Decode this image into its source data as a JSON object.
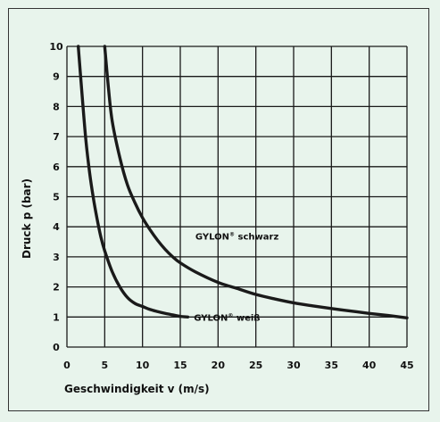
{
  "chart_data": {
    "type": "line",
    "title": "",
    "xlabel": "Geschwindigkeit v (m/s)",
    "ylabel": "Druck p (bar)",
    "xlim": [
      0,
      45
    ],
    "ylim": [
      0,
      10
    ],
    "x_ticks": [
      "0",
      "5",
      "10",
      "15",
      "20",
      "25",
      "30",
      "35",
      "40",
      "45"
    ],
    "y_ticks": [
      "0",
      "1",
      "2",
      "3",
      "4",
      "5",
      "6",
      "7",
      "8",
      "9",
      "10"
    ],
    "grid": true,
    "colors": {
      "background": "#e8f4ec",
      "grid": "#1a1a1a",
      "series": "#1a1a1a"
    },
    "series": [
      {
        "name": "GYLON® weiß",
        "label_main": "GYLON",
        "label_reg": "®",
        "label_tail": " weiß",
        "x": [
          1.5,
          2,
          2.5,
          3,
          3.5,
          4,
          4.5,
          5,
          6,
          7,
          8,
          9,
          10,
          11,
          12,
          13,
          14,
          15,
          16
        ],
        "y": [
          10,
          8.4,
          6.9,
          5.8,
          4.95,
          4.25,
          3.65,
          3.2,
          2.5,
          2.0,
          1.65,
          1.45,
          1.35,
          1.25,
          1.18,
          1.12,
          1.07,
          1.02,
          1.0
        ]
      },
      {
        "name": "GYLON® schwarz",
        "label_main": "GYLON",
        "label_reg": "®",
        "label_tail": " schwarz",
        "x": [
          5,
          5.5,
          6,
          7,
          8,
          9,
          10,
          11,
          12,
          13,
          14,
          15,
          17,
          20,
          22.5,
          25,
          27.5,
          30,
          32.5,
          35,
          37.5,
          40,
          42.5,
          45
        ],
        "y": [
          10,
          8.6,
          7.5,
          6.3,
          5.4,
          4.8,
          4.3,
          3.9,
          3.55,
          3.25,
          3.0,
          2.8,
          2.5,
          2.15,
          1.95,
          1.75,
          1.6,
          1.47,
          1.37,
          1.28,
          1.2,
          1.12,
          1.05,
          0.97
        ]
      }
    ]
  }
}
